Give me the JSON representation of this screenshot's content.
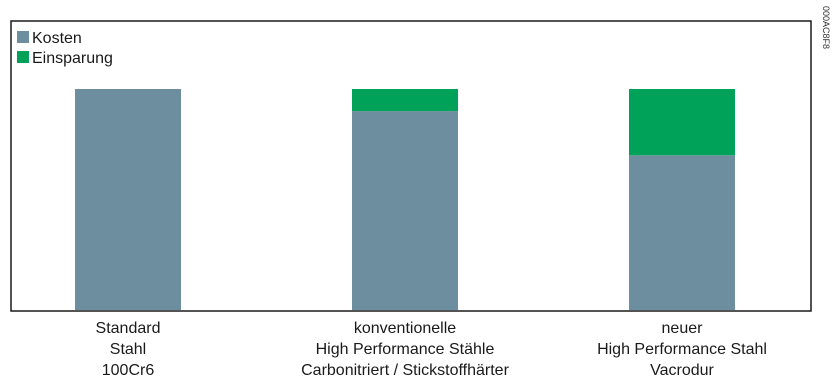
{
  "chart_data": {
    "type": "bar",
    "stacked": true,
    "categories": [
      [
        "Standard",
        "Stahl",
        "100Cr6"
      ],
      [
        "konventionelle",
        "High Performance Stähle",
        "Carbonitriert / Stickstoffhärter"
      ],
      [
        "neuer",
        "High Performance Stahl",
        "Vacrodur"
      ]
    ],
    "series": [
      {
        "name": "Kosten",
        "values": [
          100,
          90,
          70
        ],
        "color": "#6d8e9e"
      },
      {
        "name": "Einsparung",
        "values": [
          0,
          10,
          30
        ],
        "color": "#00a25a"
      }
    ],
    "ylim": [
      0,
      100
    ],
    "grid": false,
    "legend": "top-left"
  },
  "figure_code": "000AC8F8"
}
